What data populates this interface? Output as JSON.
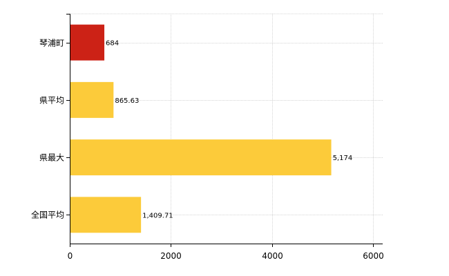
{
  "chart_data": {
    "type": "bar",
    "orientation": "horizontal",
    "categories": [
      "琴浦町",
      "県平均",
      "県最大",
      "全国平均"
    ],
    "values": [
      684,
      865.63,
      5174,
      1409.71
    ],
    "value_labels": [
      "684",
      "865.63",
      "5,174",
      "1,409.71"
    ],
    "colors": [
      "#cc2216",
      "#fccb3a",
      "#fccb3a",
      "#fccb3a"
    ],
    "xlim": [
      0,
      6000
    ],
    "xticks": [
      0,
      2000,
      4000,
      6000
    ],
    "xtick_labels": [
      "0",
      "2000",
      "4000",
      "6000"
    ],
    "grid": true,
    "legend": "none"
  }
}
